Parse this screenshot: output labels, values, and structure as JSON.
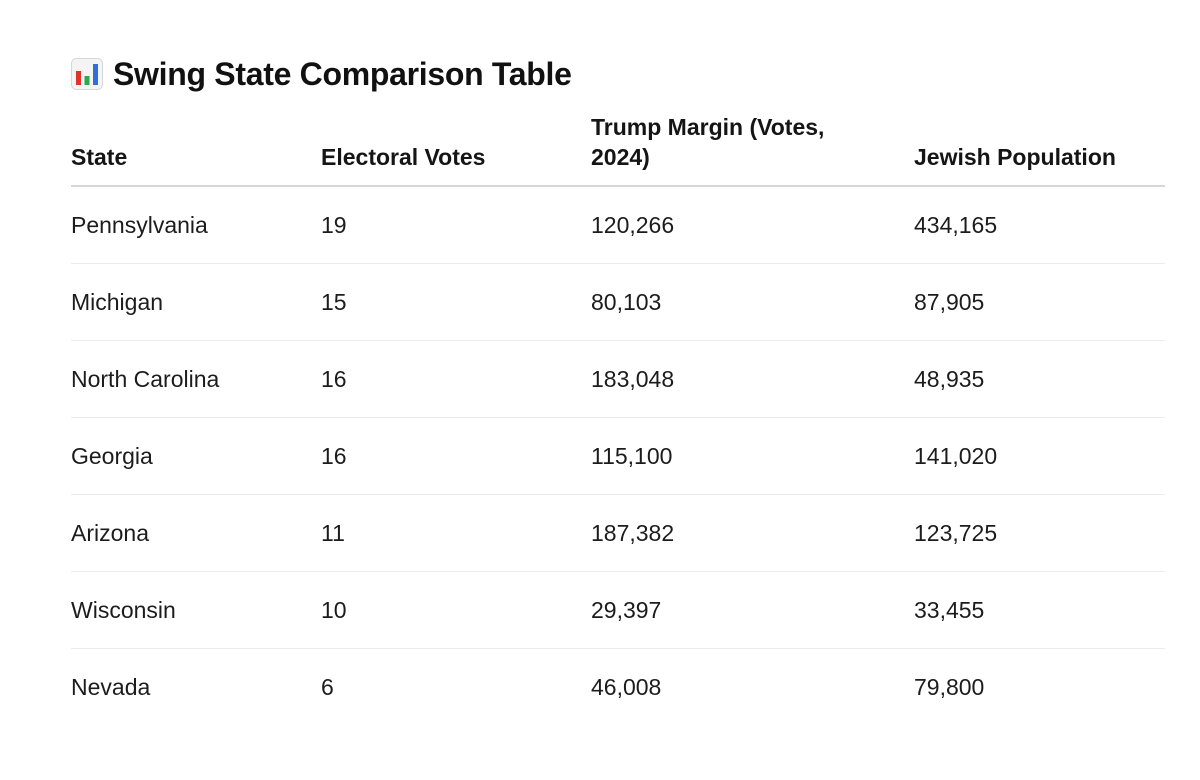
{
  "title": {
    "icon": "bar-chart-icon",
    "text": "Swing State Comparison Table"
  },
  "table": {
    "headers": {
      "state": "State",
      "electoral_votes": "Electoral Votes",
      "trump_margin": "Trump Margin (Votes, 2024)",
      "jewish_population": "Jewish Population"
    },
    "rows": [
      {
        "state": "Pennsylvania",
        "electoral_votes": "19",
        "trump_margin": "120,266",
        "jewish_population": "434,165"
      },
      {
        "state": "Michigan",
        "electoral_votes": "15",
        "trump_margin": "80,103",
        "jewish_population": "87,905"
      },
      {
        "state": "North Carolina",
        "electoral_votes": "16",
        "trump_margin": "183,048",
        "jewish_population": "48,935"
      },
      {
        "state": "Georgia",
        "electoral_votes": "16",
        "trump_margin": "115,100",
        "jewish_population": "141,020"
      },
      {
        "state": "Arizona",
        "electoral_votes": "11",
        "trump_margin": "187,382",
        "jewish_population": "123,725"
      },
      {
        "state": "Wisconsin",
        "electoral_votes": "10",
        "trump_margin": "29,397",
        "jewish_population": "33,455"
      },
      {
        "state": "Nevada",
        "electoral_votes": "6",
        "trump_margin": "46,008",
        "jewish_population": "79,800"
      }
    ]
  },
  "colors": {
    "icon_red": "#e0332b",
    "icon_green": "#2fa84f",
    "icon_blue": "#2f6fd6",
    "icon_frame": "#d8d8d8",
    "header_rule": "#d6d6d6",
    "row_rule": "#ececec"
  }
}
